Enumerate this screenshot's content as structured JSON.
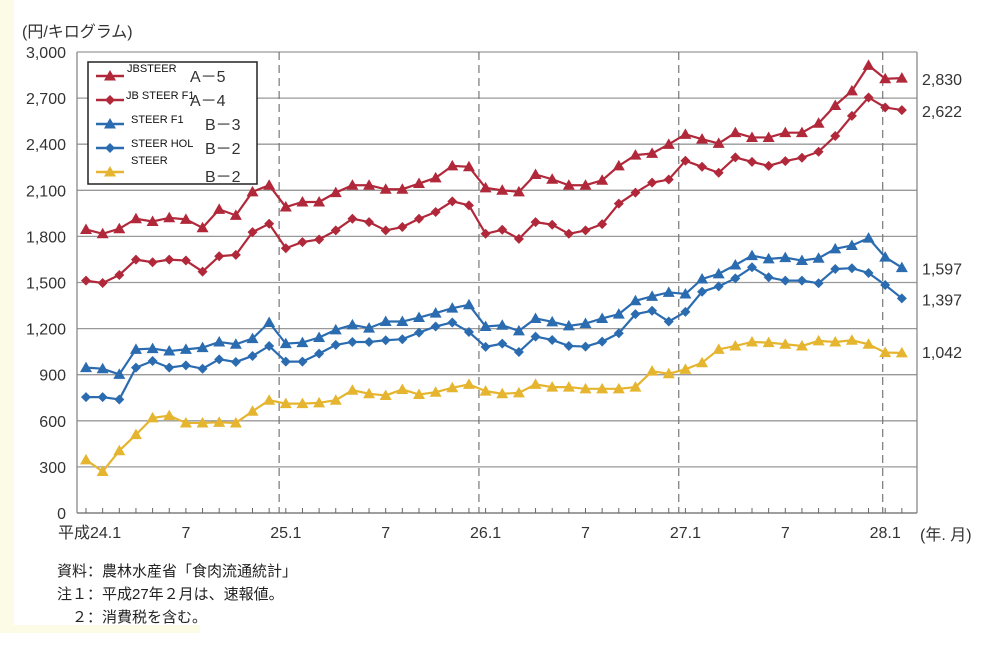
{
  "chart_data": {
    "type": "line",
    "ylabel": "(円/キログラム)",
    "xlabel": "(年. 月)",
    "ylim": [
      0,
      3000
    ],
    "yticks": [
      "0",
      "300",
      "600",
      "900",
      "1,200",
      "1,500",
      "1,800",
      "2,100",
      "2,400",
      "2,700",
      "3,000"
    ],
    "xtick_labels": [
      "平成24.1",
      "7",
      "25.1",
      "7",
      "26.1",
      "7",
      "27.1",
      "7",
      "28.1"
    ],
    "grid": "horizontal",
    "legend_position": "top-left",
    "x": [
      "24.1",
      "24.2",
      "24.3",
      "24.4",
      "24.5",
      "24.6",
      "24.7",
      "24.8",
      "24.9",
      "24.10",
      "24.11",
      "24.12",
      "25.1",
      "25.2",
      "25.3",
      "25.4",
      "25.5",
      "25.6",
      "25.7",
      "25.8",
      "25.9",
      "25.10",
      "25.11",
      "25.12",
      "26.1",
      "26.2",
      "26.3",
      "26.4",
      "26.5",
      "26.6",
      "26.7",
      "26.8",
      "26.9",
      "26.10",
      "26.11",
      "26.12",
      "27.1",
      "27.2",
      "27.3",
      "27.4",
      "27.5",
      "27.6",
      "27.7",
      "27.8",
      "27.9",
      "27.10",
      "27.11",
      "27.12",
      "28.1",
      "28.2"
    ],
    "series": [
      {
        "name": "JBSTEER",
        "grade": "A－5",
        "marker": "triangle",
        "color": "#b0283a",
        "end_label": "2,830",
        "values": [
          1845,
          1817,
          1850,
          1915,
          1897,
          1921,
          1911,
          1856,
          1976,
          1937,
          2090,
          2133,
          1991,
          2024,
          2024,
          2085,
          2133,
          2133,
          2107,
          2107,
          2144,
          2181,
          2259,
          2253,
          2116,
          2100,
          2090,
          2203,
          2172,
          2133,
          2133,
          2165,
          2259,
          2329,
          2340,
          2399,
          2464,
          2433,
          2405,
          2475,
          2444,
          2444,
          2475,
          2475,
          2536,
          2652,
          2747,
          2913,
          2826,
          2830
        ]
      },
      {
        "name": "JB STEER F1",
        "grade": "A－4",
        "marker": "diamond",
        "color": "#b0283a",
        "end_label": "2,622",
        "values": [
          1512,
          1497,
          1549,
          1649,
          1632,
          1649,
          1643,
          1571,
          1671,
          1680,
          1828,
          1882,
          1723,
          1763,
          1780,
          1839,
          1915,
          1893,
          1839,
          1861,
          1915,
          1959,
          2028,
          2002,
          1817,
          1843,
          1784,
          1893,
          1876,
          1817,
          1839,
          1880,
          2013,
          2085,
          2150,
          2170,
          2292,
          2253,
          2214,
          2314,
          2285,
          2259,
          2290,
          2312,
          2351,
          2453,
          2584,
          2704,
          2639,
          2622
        ]
      },
      {
        "name": "STEER F1",
        "grade": "B－3",
        "marker": "triangle",
        "color": "#2b6cb0",
        "end_label": "1,597",
        "values": [
          946,
          939,
          902,
          1065,
          1070,
          1054,
          1065,
          1076,
          1113,
          1098,
          1135,
          1240,
          1102,
          1109,
          1142,
          1192,
          1224,
          1203,
          1246,
          1246,
          1272,
          1301,
          1333,
          1355,
          1214,
          1222,
          1185,
          1266,
          1244,
          1218,
          1233,
          1266,
          1294,
          1381,
          1410,
          1436,
          1425,
          1523,
          1556,
          1614,
          1675,
          1654,
          1662,
          1643,
          1658,
          1719,
          1741,
          1789,
          1665,
          1597
        ]
      },
      {
        "name": "STEER HOL",
        "grade": "B－2",
        "marker": "diamond",
        "color": "#2b6cb0",
        "end_label": "1,397",
        "values": [
          754,
          754,
          739,
          946,
          989,
          946,
          961,
          939,
          1000,
          983,
          1022,
          1087,
          985,
          985,
          1037,
          1094,
          1113,
          1113,
          1124,
          1131,
          1174,
          1214,
          1240,
          1178,
          1081,
          1102,
          1048,
          1148,
          1126,
          1087,
          1083,
          1115,
          1170,
          1294,
          1316,
          1246,
          1309,
          1440,
          1475,
          1527,
          1599,
          1534,
          1512,
          1512,
          1495,
          1588,
          1593,
          1562,
          1484,
          1397
        ]
      },
      {
        "name": "STEER",
        "grade": "B－2",
        "marker": "triangle",
        "color": "#e6b530",
        "end_label": "1,042",
        "values": [
          346,
          270,
          405,
          510,
          619,
          634,
          586,
          586,
          590,
          586,
          662,
          734,
          712,
          712,
          717,
          734,
          799,
          776,
          765,
          804,
          771,
          786,
          815,
          837,
          793,
          776,
          782,
          837,
          819,
          819,
          808,
          808,
          808,
          819,
          923,
          906,
          935,
          978,
          1065,
          1087,
          1113,
          1109,
          1098,
          1087,
          1120,
          1113,
          1124,
          1098,
          1044,
          1042
        ]
      }
    ]
  },
  "notes": {
    "source": "資料：農林水産省「食肉流通統計」",
    "note1": "注１：平成27年２月は、速報値。",
    "note2": "　２：消費税を含む。"
  }
}
